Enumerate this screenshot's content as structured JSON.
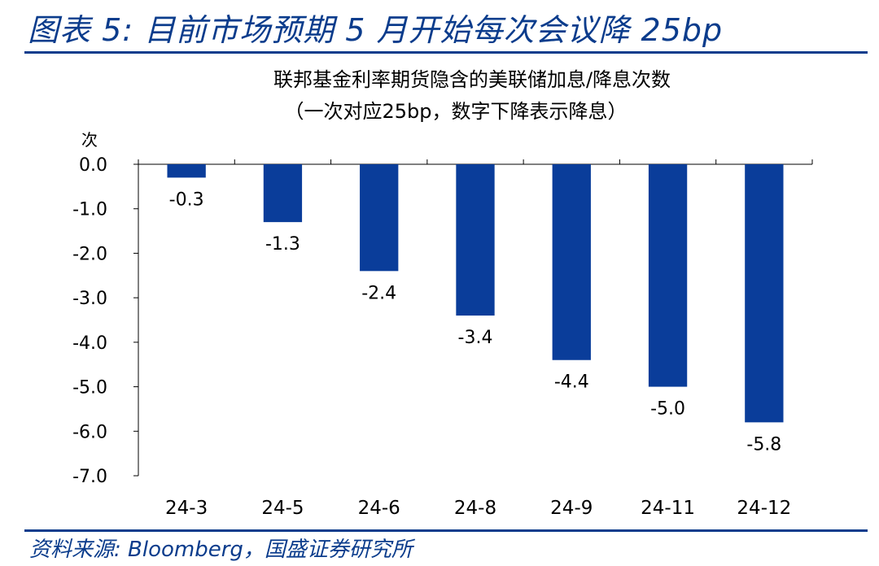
{
  "figure": {
    "title": "图表 5:  目前市场预期 5 月开始每次会议降 25bp",
    "source": "资料来源:  Bloomberg，国盛证券研究所"
  },
  "colors": {
    "accent": "#0b3c8c",
    "bar": "#0a3d9a"
  },
  "chart_data": {
    "type": "bar",
    "title": "联邦基金利率期货隐含的美联储加息/降息次数",
    "subtitle": "（一次对应25bp，数字下降表示降息）",
    "ylabel": "次",
    "xlabel": "",
    "categories": [
      "24-3",
      "24-5",
      "24-6",
      "24-8",
      "24-9",
      "24-11",
      "24-12"
    ],
    "values": [
      -0.3,
      -1.3,
      -2.4,
      -3.4,
      -4.4,
      -5.0,
      -5.8
    ],
    "value_labels": [
      "-0.3",
      "-1.3",
      "-2.4",
      "-3.4",
      "-4.4",
      "-5.0",
      "-5.8"
    ],
    "ylim": [
      -7.0,
      0.0
    ],
    "yticks": [
      "0.0",
      "-1.0",
      "-2.0",
      "-3.0",
      "-4.0",
      "-5.0",
      "-6.0",
      "-7.0"
    ],
    "grid": false,
    "legend": "none"
  }
}
